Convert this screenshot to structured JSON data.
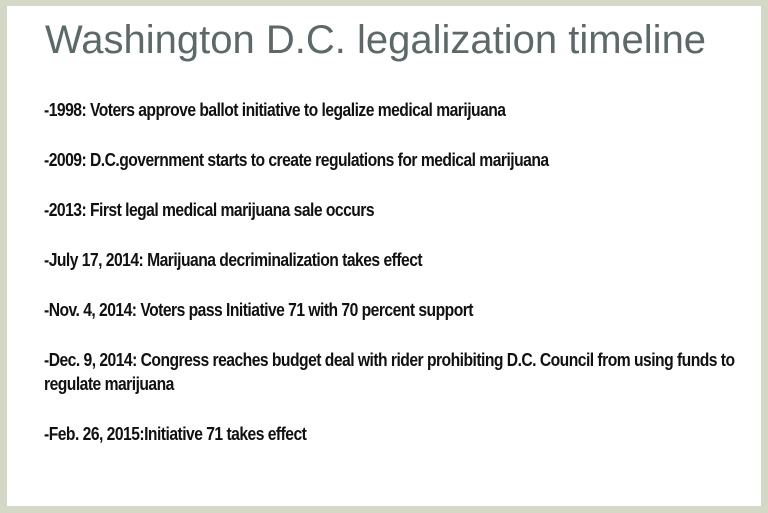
{
  "title": "Washington D.C. legalization timeline",
  "timeline": [
    {
      "text": "-1998: Voters approve ballot initiative to legalize medical marijuana"
    },
    {
      "text": "-2009: D.C.government starts to create regulations for medical marijuana"
    },
    {
      "text": "-2013: First legal medical marijuana sale occurs"
    },
    {
      "text": "-July 17, 2014: Marijuana decriminalization takes effect"
    },
    {
      "text": "-Nov. 4, 2014: Voters pass Initiative 71 with 70 percent support"
    },
    {
      "text": "-Dec. 9, 2014: Congress reaches budget deal with rider prohibiting D.C. Council from using funds to regulate marijuana"
    },
    {
      "text": "-Feb. 26, 2015:Initiative 71 takes effect"
    }
  ],
  "colors": {
    "border": "#d3d9c6",
    "title": "#5d6869",
    "body_text": "#111111"
  }
}
